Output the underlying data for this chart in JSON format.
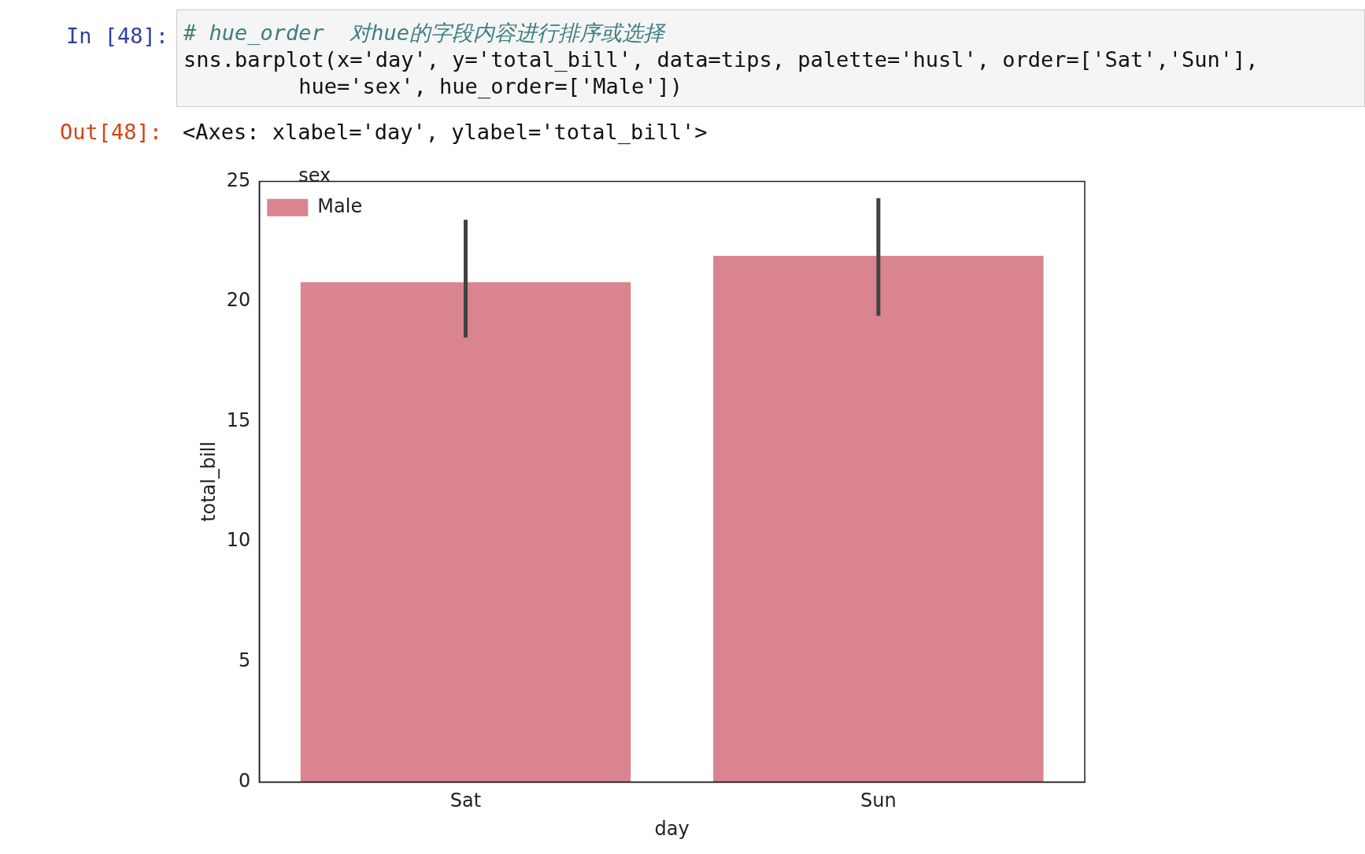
{
  "chart_data": {
    "type": "bar",
    "xlabel": "day",
    "ylabel": "total_bill",
    "legend_title": "sex",
    "annotations": [
      "In [48]:",
      "# hue_order  对hue的字段内容进行排序或选择",
      "sns.barplot(x='day', y='total_bill', data=tips, palette='husl', order=['Sat','Sun'],",
      "         hue='sex', hue_order=['Male'])",
      "Out[48]:",
      "<Axes: xlabel='day', ylabel='total_bill'>"
    ],
    "categories": [
      "Sat",
      "Sun"
    ],
    "series": [
      {
        "name": "Male",
        "color": "#d9848f",
        "values": [
          20.8,
          21.9
        ],
        "errors": [
          [
            18.5,
            23.4
          ],
          [
            19.4,
            24.3
          ]
        ]
      }
    ],
    "ylim": [
      0,
      25
    ],
    "yticks": [
      0,
      5,
      10,
      15,
      20,
      25
    ],
    "grid": false,
    "legend": "top left"
  }
}
